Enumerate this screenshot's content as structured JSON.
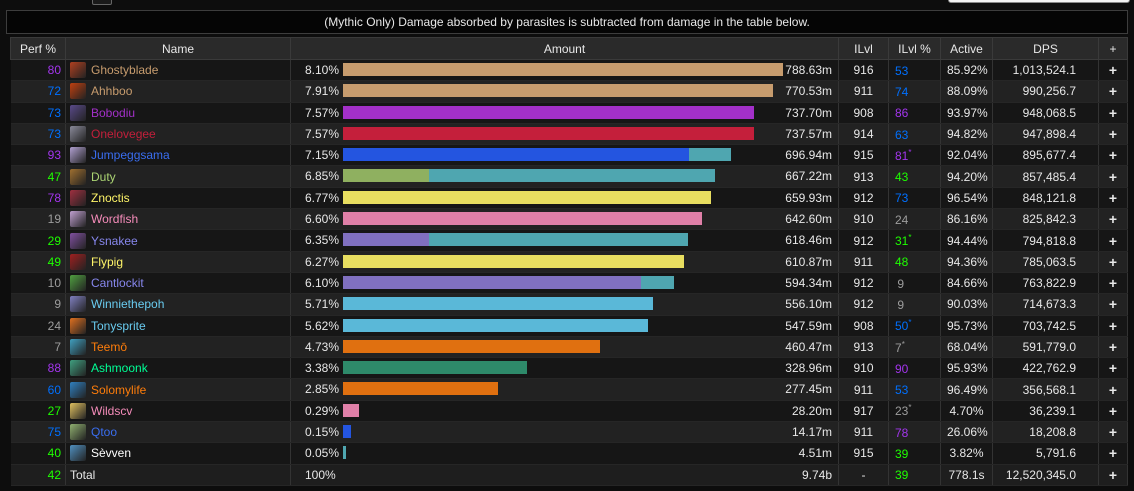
{
  "notice": "(Mythic Only) Damage absorbed by parasites is subtracted from damage in the table below.",
  "headers": {
    "perf": "Perf %",
    "name": "Name",
    "amount": "Amount",
    "ilvl": "ILvl",
    "ilvl_pct": "ILvl %",
    "active": "Active",
    "dps": "DPS",
    "plus": "+"
  },
  "max_amount_pct": 8.1,
  "rows": [
    {
      "perf": "80",
      "perf_color": "#a335ee",
      "name": "Ghostyblade",
      "name_color": "#c79c6e",
      "icon_color": "#b04020",
      "pct": "8.10%",
      "pct_num": 8.1,
      "segs": [
        {
          "frac": 1.0,
          "color": "#c79c6e"
        }
      ],
      "amount": "788.63m",
      "ilvl": "916",
      "ilvl_pct": "53",
      "ilvl_pct_color": "#0070ff",
      "star": false,
      "active": "85.92%",
      "dps": "1,013,524.1"
    },
    {
      "perf": "72",
      "perf_color": "#0070ff",
      "name": "Ahhboo",
      "name_color": "#c79c6e",
      "icon_color": "#c04010",
      "pct": "7.91%",
      "pct_num": 7.91,
      "segs": [
        {
          "frac": 1.0,
          "color": "#c79c6e"
        }
      ],
      "amount": "770.53m",
      "ilvl": "911",
      "ilvl_pct": "74",
      "ilvl_pct_color": "#0070ff",
      "star": false,
      "active": "88.09%",
      "dps": "990,256.7"
    },
    {
      "perf": "73",
      "perf_color": "#0070ff",
      "name": "Bobodiu",
      "name_color": "#a330c9",
      "icon_color": "#5a4a8a",
      "pct": "7.57%",
      "pct_num": 7.57,
      "segs": [
        {
          "frac": 1.0,
          "color": "#a330c9"
        }
      ],
      "amount": "737.70m",
      "ilvl": "908",
      "ilvl_pct": "86",
      "ilvl_pct_color": "#a335ee",
      "star": false,
      "active": "93.97%",
      "dps": "948,068.5"
    },
    {
      "perf": "73",
      "perf_color": "#0070ff",
      "name": "Onelovegee",
      "name_color": "#c41f3b",
      "icon_color": "#8a8a9a",
      "pct": "7.57%",
      "pct_num": 7.57,
      "segs": [
        {
          "frac": 1.0,
          "color": "#c41f3b"
        }
      ],
      "amount": "737.57m",
      "ilvl": "914",
      "ilvl_pct": "63",
      "ilvl_pct_color": "#0070ff",
      "star": false,
      "active": "94.82%",
      "dps": "947,898.4"
    },
    {
      "perf": "93",
      "perf_color": "#a335ee",
      "name": "Jumpeggsama",
      "name_color": "#3a6ef0",
      "icon_color": "#b0a0d0",
      "pct": "7.15%",
      "pct_num": 7.15,
      "segs": [
        {
          "frac": 0.89,
          "color": "#2455e0"
        },
        {
          "frac": 0.11,
          "color": "#4fa6b0"
        }
      ],
      "amount": "696.94m",
      "ilvl": "915",
      "ilvl_pct": "81",
      "ilvl_pct_color": "#a335ee",
      "star": true,
      "active": "92.04%",
      "dps": "895,677.4"
    },
    {
      "perf": "47",
      "perf_color": "#1eff00",
      "name": "Duty",
      "name_color": "#abd473",
      "icon_color": "#a07030",
      "pct": "6.85%",
      "pct_num": 6.85,
      "segs": [
        {
          "frac": 0.23,
          "color": "#8fb060"
        },
        {
          "frac": 0.77,
          "color": "#4fa6b0"
        }
      ],
      "amount": "667.22m",
      "ilvl": "913",
      "ilvl_pct": "43",
      "ilvl_pct_color": "#1eff00",
      "star": false,
      "active": "94.20%",
      "dps": "857,485.4"
    },
    {
      "perf": "78",
      "perf_color": "#a335ee",
      "name": "Znoctis",
      "name_color": "#fff569",
      "icon_color": "#a03040",
      "pct": "6.77%",
      "pct_num": 6.77,
      "segs": [
        {
          "frac": 1.0,
          "color": "#e8de60"
        }
      ],
      "amount": "659.93m",
      "ilvl": "912",
      "ilvl_pct": "73",
      "ilvl_pct_color": "#0070ff",
      "star": false,
      "active": "96.54%",
      "dps": "848,121.8"
    },
    {
      "perf": "19",
      "perf_color": "#9d9d9d",
      "name": "Wordfish",
      "name_color": "#f58cba",
      "icon_color": "#c0a0d0",
      "pct": "6.60%",
      "pct_num": 6.6,
      "segs": [
        {
          "frac": 1.0,
          "color": "#e080a8"
        }
      ],
      "amount": "642.60m",
      "ilvl": "910",
      "ilvl_pct": "24",
      "ilvl_pct_color": "#9d9d9d",
      "star": false,
      "active": "86.16%",
      "dps": "825,842.3"
    },
    {
      "perf": "29",
      "perf_color": "#1eff00",
      "name": "Ysnakee",
      "name_color": "#8787ed",
      "icon_color": "#8050a0",
      "pct": "6.35%",
      "pct_num": 6.35,
      "segs": [
        {
          "frac": 0.25,
          "color": "#8070c0"
        },
        {
          "frac": 0.75,
          "color": "#4fa6b0"
        }
      ],
      "amount": "618.46m",
      "ilvl": "912",
      "ilvl_pct": "31",
      "ilvl_pct_color": "#1eff00",
      "star": true,
      "active": "94.44%",
      "dps": "794,818.8"
    },
    {
      "perf": "49",
      "perf_color": "#1eff00",
      "name": "Flypig",
      "name_color": "#fff569",
      "icon_color": "#a02020",
      "pct": "6.27%",
      "pct_num": 6.27,
      "segs": [
        {
          "frac": 1.0,
          "color": "#e8de60"
        }
      ],
      "amount": "610.87m",
      "ilvl": "911",
      "ilvl_pct": "48",
      "ilvl_pct_color": "#1eff00",
      "star": false,
      "active": "94.36%",
      "dps": "785,063.5"
    },
    {
      "perf": "10",
      "perf_color": "#9d9d9d",
      "name": "Cantlockit",
      "name_color": "#8787ed",
      "icon_color": "#50a040",
      "pct": "6.10%",
      "pct_num": 6.1,
      "segs": [
        {
          "frac": 0.9,
          "color": "#8070c0"
        },
        {
          "frac": 0.1,
          "color": "#4fa6b0"
        }
      ],
      "amount": "594.34m",
      "ilvl": "912",
      "ilvl_pct": "9",
      "ilvl_pct_color": "#9d9d9d",
      "star": false,
      "active": "84.66%",
      "dps": "763,822.9"
    },
    {
      "perf": "9",
      "perf_color": "#9d9d9d",
      "name": "Winniethepoh",
      "name_color": "#69ccf0",
      "icon_color": "#8080c0",
      "pct": "5.71%",
      "pct_num": 5.71,
      "segs": [
        {
          "frac": 1.0,
          "color": "#5ab8d8"
        }
      ],
      "amount": "556.10m",
      "ilvl": "912",
      "ilvl_pct": "9",
      "ilvl_pct_color": "#9d9d9d",
      "star": false,
      "active": "90.03%",
      "dps": "714,673.3"
    },
    {
      "perf": "24",
      "perf_color": "#9d9d9d",
      "name": "Tonysprite",
      "name_color": "#69ccf0",
      "icon_color": "#e07020",
      "pct": "5.62%",
      "pct_num": 5.62,
      "segs": [
        {
          "frac": 1.0,
          "color": "#5ab8d8"
        }
      ],
      "amount": "547.59m",
      "ilvl": "908",
      "ilvl_pct": "50",
      "ilvl_pct_color": "#0070ff",
      "star": true,
      "active": "95.73%",
      "dps": "703,742.5"
    },
    {
      "perf": "7",
      "perf_color": "#9d9d9d",
      "name": "Teemō",
      "name_color": "#ff7d0a",
      "icon_color": "#40a0c0",
      "pct": "4.73%",
      "pct_num": 4.73,
      "segs": [
        {
          "frac": 1.0,
          "color": "#e07010"
        }
      ],
      "amount": "460.47m",
      "ilvl": "913",
      "ilvl_pct": "7",
      "ilvl_pct_color": "#9d9d9d",
      "star": true,
      "active": "68.04%",
      "dps": "591,779.0"
    },
    {
      "perf": "88",
      "perf_color": "#a335ee",
      "name": "Ashmoonk",
      "name_color": "#00ff96",
      "icon_color": "#40a080",
      "pct": "3.38%",
      "pct_num": 3.38,
      "segs": [
        {
          "frac": 1.0,
          "color": "#2e8a6a"
        }
      ],
      "amount": "328.96m",
      "ilvl": "910",
      "ilvl_pct": "90",
      "ilvl_pct_color": "#a335ee",
      "star": false,
      "active": "95.93%",
      "dps": "422,762.9"
    },
    {
      "perf": "60",
      "perf_color": "#0070ff",
      "name": "Solomylife",
      "name_color": "#ff7d0a",
      "icon_color": "#3080c0",
      "pct": "2.85%",
      "pct_num": 2.85,
      "segs": [
        {
          "frac": 1.0,
          "color": "#e07010"
        }
      ],
      "amount": "277.45m",
      "ilvl": "911",
      "ilvl_pct": "53",
      "ilvl_pct_color": "#0070ff",
      "star": false,
      "active": "96.49%",
      "dps": "356,568.1"
    },
    {
      "perf": "27",
      "perf_color": "#1eff00",
      "name": "Wildscv",
      "name_color": "#f58cba",
      "icon_color": "#e0c060",
      "pct": "0.29%",
      "pct_num": 0.29,
      "segs": [
        {
          "frac": 1.0,
          "color": "#e080a8"
        }
      ],
      "amount": "28.20m",
      "ilvl": "917",
      "ilvl_pct": "23",
      "ilvl_pct_color": "#9d9d9d",
      "star": true,
      "active": "4.70%",
      "dps": "36,239.1"
    },
    {
      "perf": "75",
      "perf_color": "#0070ff",
      "name": "Qtoo",
      "name_color": "#3a6ef0",
      "icon_color": "#90b070",
      "pct": "0.15%",
      "pct_num": 0.15,
      "segs": [
        {
          "frac": 1.0,
          "color": "#2455e0"
        }
      ],
      "amount": "14.17m",
      "ilvl": "911",
      "ilvl_pct": "78",
      "ilvl_pct_color": "#a335ee",
      "star": false,
      "active": "26.06%",
      "dps": "18,208.8"
    },
    {
      "perf": "40",
      "perf_color": "#1eff00",
      "name": "Sèvven",
      "name_color": "#ffffff",
      "icon_color": "#5090c0",
      "pct": "0.05%",
      "pct_num": 0.05,
      "segs": [
        {
          "frac": 1.0,
          "color": "#4fa6b0"
        }
      ],
      "amount": "4.51m",
      "ilvl": "915",
      "ilvl_pct": "39",
      "ilvl_pct_color": "#1eff00",
      "star": false,
      "active": "3.82%",
      "dps": "5,791.6"
    }
  ],
  "total": {
    "perf": "42",
    "perf_color": "#1eff00",
    "name": "Total",
    "pct": "100%",
    "amount": "9.74b",
    "ilvl": "-",
    "ilvl_pct": "39",
    "ilvl_pct_color": "#1eff00",
    "active": "778.1s",
    "dps": "12,520,345.0"
  }
}
